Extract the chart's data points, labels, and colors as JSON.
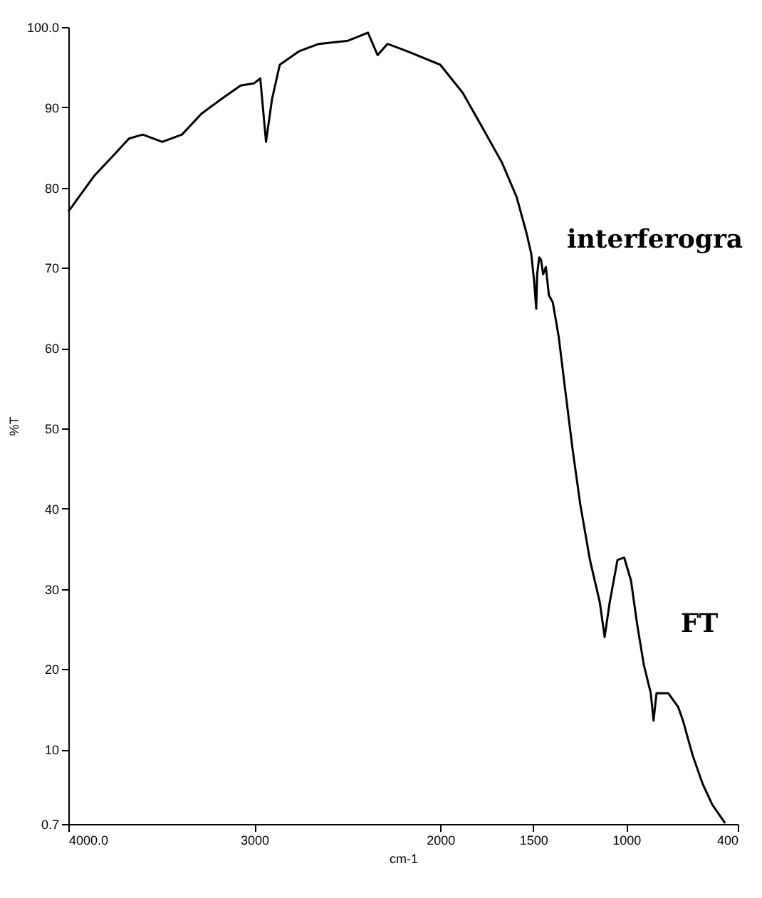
{
  "chart_data": {
    "type": "line",
    "xlabel": "cm-1",
    "ylabel": "%T",
    "x": [
      4000,
      3863,
      3758,
      3674,
      3600,
      3495,
      3389,
      3284,
      3179,
      3074,
      3000,
      2968,
      2937,
      2905,
      2863,
      2758,
      2653,
      2495,
      2389,
      2337,
      2284,
      2179,
      2000,
      1879,
      1774,
      1668,
      1589,
      1537,
      1511,
      1495,
      1484,
      1479,
      1468,
      1458,
      1447,
      1432,
      1416,
      1395,
      1363,
      1326,
      1289,
      1247,
      1195,
      1142,
      1116,
      1089,
      1047,
      1011,
      974,
      942,
      905,
      868,
      853,
      837,
      774,
      721,
      695,
      642,
      589,
      537,
      468
    ],
    "series": [
      {
        "color": "#000000",
        "values": [
          77.0,
          81.4,
          84.0,
          86.1,
          86.6,
          85.7,
          86.6,
          89.2,
          91.0,
          92.7,
          93.0,
          93.6,
          85.7,
          91.0,
          95.3,
          97.0,
          97.9,
          98.3,
          99.3,
          96.5,
          97.9,
          97.0,
          95.3,
          91.8,
          87.5,
          83.1,
          78.8,
          74.4,
          71.8,
          68.3,
          64.9,
          69.2,
          71.3,
          71.0,
          69.2,
          70.1,
          66.6,
          65.7,
          61.4,
          54.4,
          47.5,
          40.5,
          33.6,
          28.3,
          24.0,
          28.3,
          33.6,
          33.9,
          31.0,
          25.7,
          20.5,
          17.0,
          13.6,
          17.0,
          17.0,
          15.3,
          13.6,
          9.2,
          5.7,
          3.1,
          0.8
        ]
      }
    ],
    "xlim": [
      4000,
      400
    ],
    "xticks": [
      {
        "value": 4000,
        "label": "4000.0"
      },
      3000,
      2000,
      1500,
      1000,
      400
    ],
    "ylim": [
      0.7,
      100
    ],
    "yticks": [
      {
        "value": 0.7,
        "label": "0.7"
      },
      10,
      20,
      30,
      40,
      50,
      60,
      70,
      80,
      90,
      {
        "value": 100,
        "label": "100.0"
      }
    ],
    "grid": false,
    "marker": "none",
    "line_style": "solid",
    "annotations": [
      "interferogra",
      "FT"
    ]
  }
}
